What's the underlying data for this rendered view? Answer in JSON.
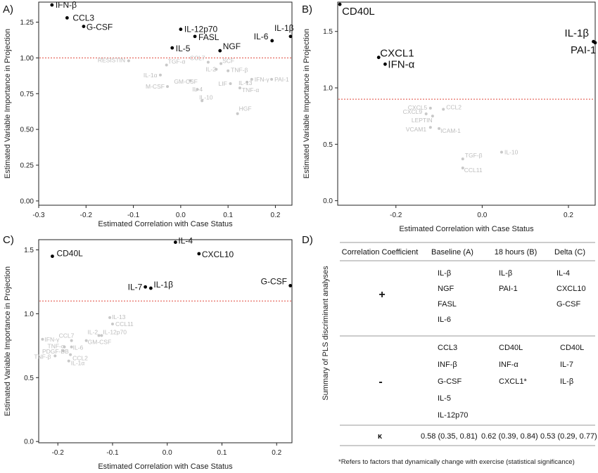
{
  "chart_data": [
    {
      "panel_label": "A)",
      "type": "scatter",
      "xlabel": "Estimated Correlation with Case Status",
      "ylabel": "Estimated Variable Importance in Projection",
      "xlim": [
        -0.3,
        0.235
      ],
      "ylim": [
        -0.03,
        1.39
      ],
      "xticks": [
        -0.3,
        -0.2,
        -0.1,
        0.0,
        0.1,
        0.2
      ],
      "xticklabels": [
        "-0.3",
        "-0.2",
        "-0.1",
        "0.0",
        "0.1",
        "0.2"
      ],
      "yticks": [
        0.0,
        0.25,
        0.5,
        0.75,
        1.0,
        1.25
      ],
      "yticklabels": [
        "0.00",
        "0.25",
        "0.50",
        "0.75",
        "1.00",
        "1.25"
      ],
      "threshold": 1.0,
      "points": [
        {
          "label": "IFN-β",
          "x": -0.272,
          "y": 1.37,
          "sig": true
        },
        {
          "label": "CCL3",
          "x": -0.24,
          "y": 1.28,
          "sig": true
        },
        {
          "label": "G-CSF",
          "x": -0.205,
          "y": 1.22,
          "sig": true
        },
        {
          "label": "IL-12p70",
          "x": 0.0,
          "y": 1.2,
          "sig": true
        },
        {
          "label": "FASL",
          "x": 0.03,
          "y": 1.15,
          "sig": true
        },
        {
          "label": "IL-5",
          "x": -0.018,
          "y": 1.07,
          "sig": true
        },
        {
          "label": "NGF",
          "x": 0.083,
          "y": 1.05,
          "sig": true
        },
        {
          "label": "IL-6",
          "x": 0.193,
          "y": 1.12,
          "sig": true
        },
        {
          "label": "IL-1β",
          "x": 0.232,
          "y": 1.15,
          "sig": true
        },
        {
          "label": "RESISTIN",
          "x": -0.11,
          "y": 0.98,
          "sig": false
        },
        {
          "label": "TGF-α",
          "x": -0.03,
          "y": 0.95,
          "sig": false
        },
        {
          "label": "CCL7",
          "x": 0.058,
          "y": 0.97,
          "sig": false
        },
        {
          "label": "SCF",
          "x": 0.085,
          "y": 0.96,
          "sig": false
        },
        {
          "label": "IL-2",
          "x": 0.075,
          "y": 0.92,
          "sig": false
        },
        {
          "label": "TNF-β",
          "x": 0.1,
          "y": 0.91,
          "sig": false
        },
        {
          "label": "IL-1α",
          "x": -0.043,
          "y": 0.88,
          "sig": false
        },
        {
          "label": "IFN-γ",
          "x": 0.15,
          "y": 0.85,
          "sig": false
        },
        {
          "label": "PAI-1",
          "x": 0.192,
          "y": 0.85,
          "sig": false
        },
        {
          "label": "GM-CSF",
          "x": 0.02,
          "y": 0.84,
          "sig": false
        },
        {
          "label": "M-CSF",
          "x": -0.028,
          "y": 0.8,
          "sig": false
        },
        {
          "label": "LIF",
          "x": 0.105,
          "y": 0.82,
          "sig": false
        },
        {
          "label": "IL-13",
          "x": 0.14,
          "y": 0.83,
          "sig": false
        },
        {
          "label": "IL-4",
          "x": 0.035,
          "y": 0.78,
          "sig": false
        },
        {
          "label": "TNF-α",
          "x": 0.125,
          "y": 0.79,
          "sig": false
        },
        {
          "label": "IL-10",
          "x": 0.045,
          "y": 0.7,
          "sig": false
        },
        {
          "label": "HGF",
          "x": 0.12,
          "y": 0.61,
          "sig": false
        }
      ]
    },
    {
      "panel_label": "B)",
      "type": "scatter",
      "xlabel": "Estimated Correlation with Case Status",
      "ylabel": "Estimated Variable Importance in Projection",
      "xlim": [
        -0.335,
        0.262
      ],
      "ylim": [
        -0.04,
        1.76
      ],
      "xticks": [
        -0.2,
        0.0,
        0.2
      ],
      "xticklabels": [
        "-0.2",
        "0.0",
        "0.2"
      ],
      "yticks": [
        0.0,
        0.5,
        1.0,
        1.5
      ],
      "yticklabels": [
        "0.0",
        "0.5",
        "1.0",
        "1.5"
      ],
      "threshold": 0.9,
      "points": [
        {
          "label": "CD40L",
          "x": -0.33,
          "y": 1.74,
          "sig": true
        },
        {
          "label": "CXCL1",
          "x": -0.24,
          "y": 1.27,
          "sig": true
        },
        {
          "label": "IFN-α",
          "x": -0.225,
          "y": 1.21,
          "sig": true
        },
        {
          "label": "IL-1β",
          "x": 0.258,
          "y": 1.41,
          "sig": true
        },
        {
          "label": "PAI-1",
          "x": 0.262,
          "y": 1.4,
          "sig": true
        },
        {
          "label": "CXCL5",
          "x": -0.12,
          "y": 0.82,
          "sig": false
        },
        {
          "label": "CCL2",
          "x": -0.09,
          "y": 0.81,
          "sig": false
        },
        {
          "label": "CXCL9",
          "x": -0.13,
          "y": 0.77,
          "sig": false
        },
        {
          "label": "LEPTIN",
          "x": -0.115,
          "y": 0.75,
          "sig": false
        },
        {
          "label": "VCAM1",
          "x": -0.12,
          "y": 0.65,
          "sig": false
        },
        {
          "label": "ICAM-1",
          "x": -0.1,
          "y": 0.64,
          "sig": false
        },
        {
          "label": "TGF-β",
          "x": -0.045,
          "y": 0.37,
          "sig": false
        },
        {
          "label": "IL-10",
          "x": 0.045,
          "y": 0.43,
          "sig": false
        },
        {
          "label": "CCL11",
          "x": -0.045,
          "y": 0.29,
          "sig": false
        }
      ]
    },
    {
      "panel_label": "C)",
      "type": "scatter",
      "xlabel": "Estimated Correlation with Case Status",
      "ylabel": "Estimated Variable Importance in Projection",
      "xlim": [
        -0.235,
        0.228
      ],
      "ylim": [
        -0.01,
        1.58
      ],
      "xticks": [
        -0.2,
        -0.1,
        0.0,
        0.1,
        0.2
      ],
      "xticklabels": [
        "-0.2",
        "-0.1",
        "0.0",
        "0.1",
        "0.2"
      ],
      "yticks": [
        0.0,
        0.5,
        1.0,
        1.5
      ],
      "yticklabels": [
        "0.0",
        "0.5",
        "1.0",
        "1.5"
      ],
      "threshold": 1.1,
      "points": [
        {
          "label": "CD40L",
          "x": -0.21,
          "y": 1.45,
          "sig": true
        },
        {
          "label": "IL-4",
          "x": 0.015,
          "y": 1.56,
          "sig": true
        },
        {
          "label": "CXCL10",
          "x": 0.058,
          "y": 1.47,
          "sig": true
        },
        {
          "label": "IL-7",
          "x": -0.04,
          "y": 1.21,
          "sig": true
        },
        {
          "label": "IL-1β",
          "x": -0.03,
          "y": 1.2,
          "sig": true
        },
        {
          "label": "G-CSF",
          "x": 0.225,
          "y": 1.22,
          "sig": true
        },
        {
          "label": "IL-13",
          "x": -0.105,
          "y": 0.97,
          "sig": false
        },
        {
          "label": "CCL11",
          "x": -0.1,
          "y": 0.92,
          "sig": false
        },
        {
          "label": "IL-2",
          "x": -0.125,
          "y": 0.83,
          "sig": false
        },
        {
          "label": "IL-12p70",
          "x": -0.12,
          "y": 0.83,
          "sig": false
        },
        {
          "label": "IFN-γ",
          "x": -0.228,
          "y": 0.8,
          "sig": false
        },
        {
          "label": "CCL7",
          "x": -0.175,
          "y": 0.79,
          "sig": false
        },
        {
          "label": "GM-CSF",
          "x": -0.148,
          "y": 0.79,
          "sig": false
        },
        {
          "label": "TNF-α",
          "x": -0.188,
          "y": 0.74,
          "sig": false
        },
        {
          "label": "IL-6",
          "x": -0.175,
          "y": 0.74,
          "sig": false
        },
        {
          "label": "PDGF-BB",
          "x": -0.19,
          "y": 0.71,
          "sig": false
        },
        {
          "label": "CCL2",
          "x": -0.177,
          "y": 0.68,
          "sig": false
        },
        {
          "label": "TNF-β",
          "x": -0.205,
          "y": 0.67,
          "sig": false
        },
        {
          "label": "IL-1α",
          "x": -0.18,
          "y": 0.63,
          "sig": false
        }
      ]
    },
    {
      "panel_label": "D)",
      "type": "table",
      "side_label": "Summary of PLS discriminant analyses",
      "columns": [
        "Correlation Coefficient",
        "Baseline (A)",
        "18 hours (B)",
        "Delta (C)"
      ],
      "rows": [
        {
          "sign": "+",
          "baseline": [
            "IL-β",
            "NGF",
            "FASL",
            "IL-6"
          ],
          "h18": [
            "IL-β",
            "PAI-1"
          ],
          "delta": [
            "IL-4",
            "CXCL10",
            "G-CSF"
          ]
        },
        {
          "sign": "-",
          "baseline": [
            "CCL3",
            "INF-β",
            "G-CSF",
            "IL-5",
            "IL-12p70"
          ],
          "h18": [
            "CD40L",
            "INF-α",
            "CXCL1*"
          ],
          "delta": [
            "CD40L",
            "IL-7",
            "IL-β"
          ]
        }
      ],
      "kappa": {
        "sign": "κ",
        "baseline": "0.58 (0.35, 0.81)",
        "h18": "0.62 (0.39, 0.84)",
        "delta": "0.53 (0.29, 0.77)"
      },
      "footnote": "*Refers to factors that dynamically change with exercise (statistical significance)"
    }
  ]
}
